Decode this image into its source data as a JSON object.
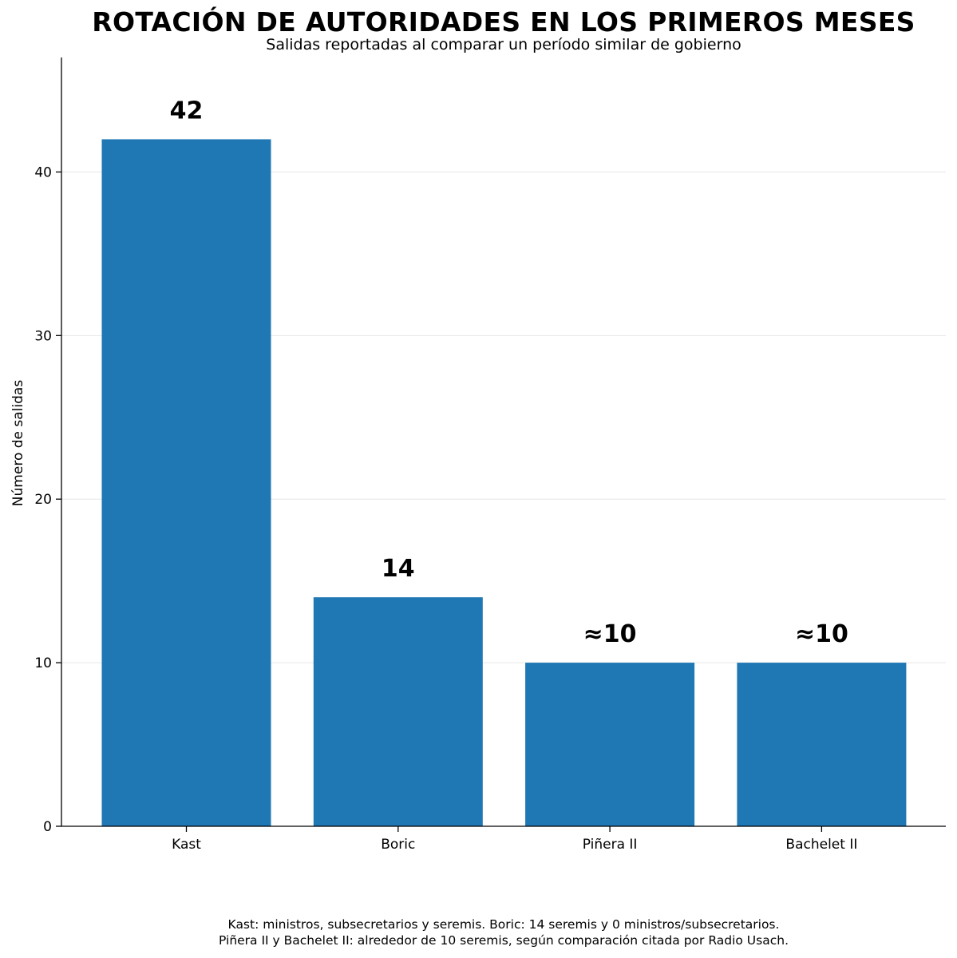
{
  "chart_data": {
    "type": "bar",
    "title": "ROTACIÓN DE AUTORIDADES EN LOS PRIMEROS MESES",
    "subtitle": "Salidas reportadas al comparar un período similar de gobierno",
    "xlabel": "",
    "ylabel": "Número de salidas",
    "categories": [
      "Kast",
      "Boric",
      "Piñera II",
      "Bachelet II"
    ],
    "values": [
      42,
      14,
      10,
      10
    ],
    "data_labels": [
      "42",
      "14",
      "≈10",
      "≈10"
    ],
    "ylim": [
      0,
      47
    ],
    "yticks": [
      0,
      10,
      20,
      30,
      40
    ],
    "grid": "horizontal",
    "bar_color": "#1f77b4",
    "footnotes": [
      "Kast: ministros, subsecretarios y seremis. Boric: 14 seremis y 0 ministros/subsecretarios.",
      "Piñera II y Bachelet II: alrededor de 10 seremis, según comparación citada por Radio Usach."
    ]
  }
}
